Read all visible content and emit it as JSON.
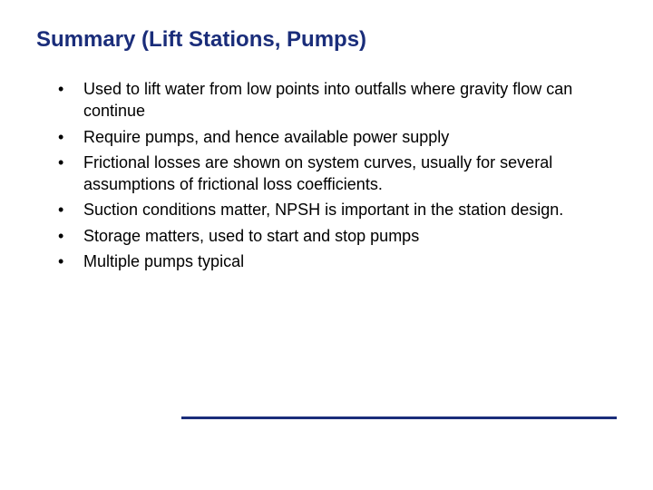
{
  "slide": {
    "title": "Summary (Lift Stations, Pumps)",
    "title_color": "#1a2d7a",
    "title_fontsize": 24,
    "body_fontsize": 18,
    "body_color": "#000000",
    "background_color": "#ffffff",
    "divider_color": "#1a2d7a",
    "bullets": [
      "Used to lift water from low points into outfalls where gravity flow can continue",
      "Require pumps, and hence available power supply",
      "Frictional losses are shown on system curves, usually for several assumptions of frictional loss coefficients.",
      "Suction conditions matter, NPSH is important in the station design.",
      "Storage matters, used to start and stop pumps",
      "Multiple pumps typical"
    ]
  }
}
